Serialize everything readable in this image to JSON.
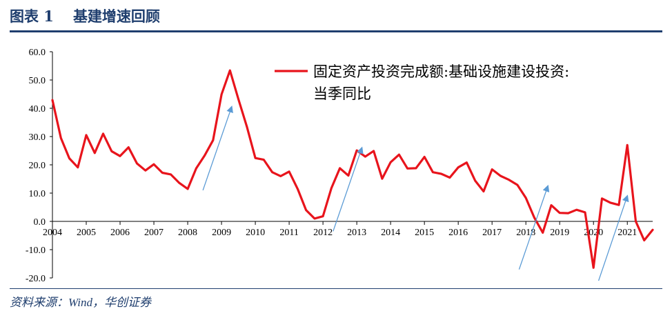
{
  "header": {
    "figure_label": "图表 1",
    "figure_title": "基建增速回顾"
  },
  "source": "资料来源：Wind，华创证券",
  "colors": {
    "line": "#e8141c",
    "arrow": "#5b9bd5",
    "rule": "#1f3e6e",
    "axis": "#000000"
  },
  "chart_data": {
    "type": "line",
    "legend_position": "top-right",
    "grid": false,
    "ylim": [
      -20,
      60
    ],
    "yticks": [
      "60.0",
      "50.0",
      "40.0",
      "30.0",
      "20.0",
      "10.0",
      "0.0",
      "-10.0",
      "-20.0"
    ],
    "ytick_values": [
      60,
      50,
      40,
      30,
      20,
      10,
      0,
      -10,
      -20
    ],
    "year_labels": [
      "2004",
      "2005",
      "2006",
      "2007",
      "2008",
      "2009",
      "2010",
      "2011",
      "2012",
      "2013",
      "2014",
      "2015",
      "2016",
      "2017",
      "2018",
      "2019",
      "2020",
      "2021"
    ],
    "x_range": [
      2004.0,
      2021.75
    ],
    "series": [
      {
        "name": "固定资产投资完成额:基础设施建设投资:当季同比",
        "color": "#e8141c",
        "x": [
          2004.0,
          2004.25,
          2004.5,
          2004.75,
          2005.0,
          2005.25,
          2005.5,
          2005.75,
          2006.0,
          2006.25,
          2006.5,
          2006.75,
          2007.0,
          2007.25,
          2007.5,
          2007.75,
          2008.0,
          2008.25,
          2008.5,
          2008.75,
          2009.0,
          2009.25,
          2009.5,
          2009.75,
          2010.0,
          2010.25,
          2010.5,
          2010.75,
          2011.0,
          2011.25,
          2011.5,
          2011.75,
          2012.0,
          2012.25,
          2012.5,
          2012.75,
          2013.0,
          2013.25,
          2013.5,
          2013.75,
          2014.0,
          2014.25,
          2014.5,
          2014.75,
          2015.0,
          2015.25,
          2015.5,
          2015.75,
          2016.0,
          2016.25,
          2016.5,
          2016.75,
          2017.0,
          2017.25,
          2017.5,
          2017.75,
          2018.0,
          2018.25,
          2018.5,
          2018.75,
          2019.0,
          2019.25,
          2019.5,
          2019.75,
          2020.0,
          2020.25,
          2020.5,
          2020.75,
          2021.0,
          2021.25,
          2021.5,
          2021.75
        ],
        "values": [
          42.9,
          29.5,
          22.3,
          19.1,
          30.5,
          24.2,
          31.0,
          24.8,
          23.1,
          26.2,
          20.5,
          18.0,
          20.2,
          17.2,
          16.6,
          13.6,
          11.5,
          18.7,
          23.3,
          28.7,
          44.9,
          53.4,
          43.2,
          33.5,
          22.4,
          21.8,
          17.4,
          16.0,
          17.6,
          11.5,
          4.0,
          1.0,
          1.8,
          11.8,
          18.8,
          16.2,
          25.1,
          22.9,
          24.9,
          15.1,
          20.9,
          23.6,
          18.7,
          18.8,
          22.8,
          17.4,
          16.8,
          15.5,
          19.1,
          20.8,
          14.4,
          10.6,
          18.4,
          16.1,
          14.7,
          12.9,
          8.3,
          1.3,
          -4.0,
          5.7,
          3.0,
          2.9,
          4.1,
          3.2,
          -16.4,
          8.1,
          6.6,
          5.8,
          27.0,
          0.0,
          -6.7,
          -3.0
        ]
      }
    ],
    "arrows": [
      {
        "from": [
          2008.45,
          11
        ],
        "to": [
          2009.3,
          40.5
        ]
      },
      {
        "from": [
          2012.3,
          -3.5
        ],
        "to": [
          2013.15,
          26
        ]
      },
      {
        "from": [
          2017.8,
          -17
        ],
        "to": [
          2018.65,
          12.5
        ]
      },
      {
        "from": [
          2020.15,
          -21
        ],
        "to": [
          2021.0,
          9
        ]
      }
    ]
  }
}
